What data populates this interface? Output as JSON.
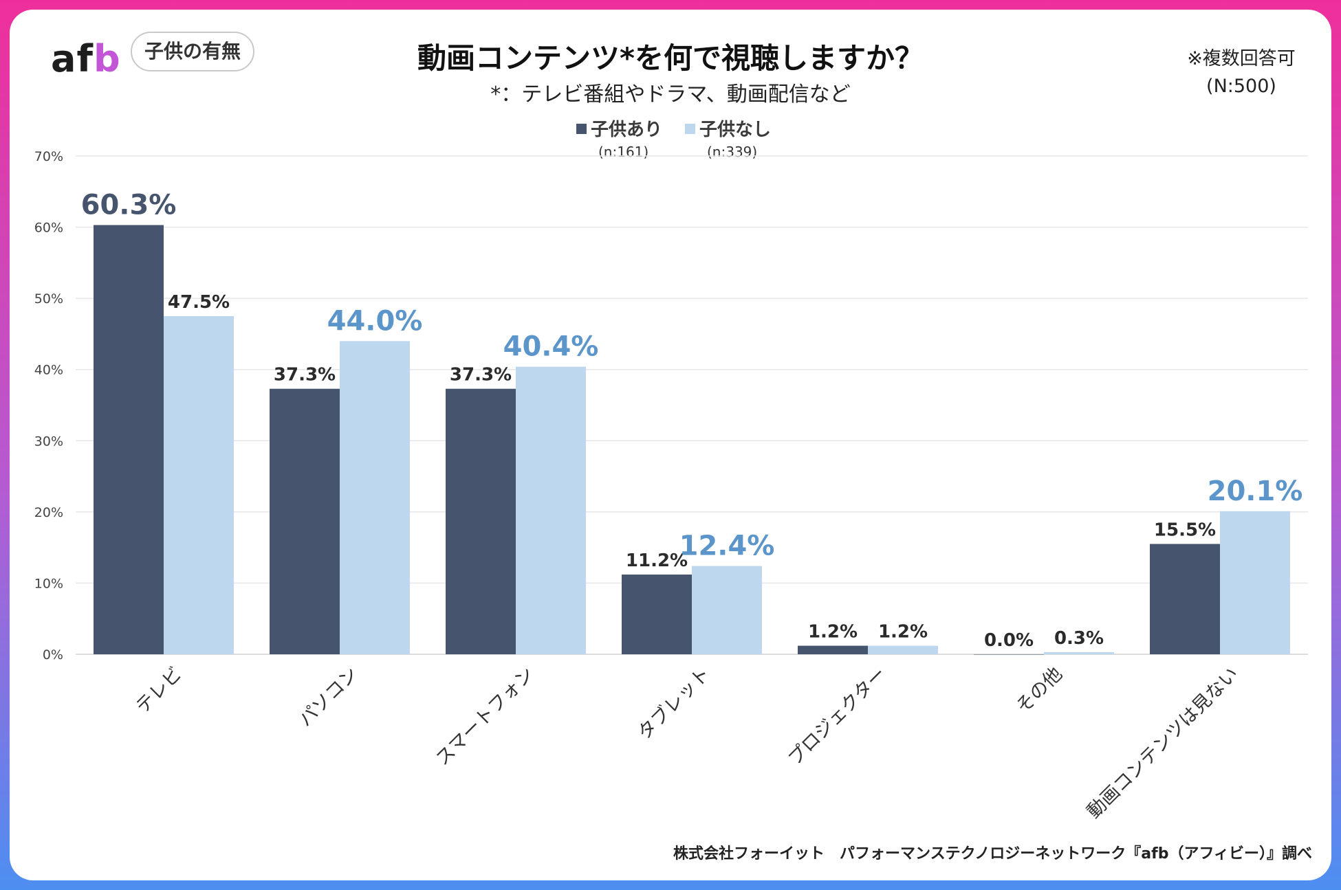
{
  "header": {
    "logo_a": "af",
    "logo_b": "b",
    "tag": "子供の有無",
    "title": "動画コンテンツ*を何で視聴しますか？",
    "subtitle": "*：テレビ番組やドラマ、動画配信など",
    "note_line1": "※複数回答可",
    "note_line2": "(N:500)"
  },
  "legend": [
    {
      "label": "子供あり",
      "n": "(n:161)",
      "color": "#46556d"
    },
    {
      "label": "子供なし",
      "n": "(n:339)",
      "color": "#bdd7ee"
    }
  ],
  "source": "株式会社フォーイット　パフォーマンステクノロジーネットワーク『afb（アフィビー）』調べ",
  "colors": {
    "series_dark": "#46556d",
    "series_light": "#bdd7ee",
    "highlight_blue": "#5b95c9",
    "highlight_dark": "#46556d",
    "label_default": "#2b2b2b"
  },
  "chart_data": {
    "type": "bar",
    "title": "動画コンテンツ*を何で視聴しますか？",
    "xlabel": "",
    "ylabel": "",
    "ylim": [
      0,
      70
    ],
    "yticks": [
      0,
      10,
      20,
      30,
      40,
      50,
      60,
      70
    ],
    "ytick_labels": [
      "0%",
      "10%",
      "20%",
      "30%",
      "40%",
      "50%",
      "60%",
      "70%"
    ],
    "grid": true,
    "categories": [
      "テレビ",
      "パソコン",
      "スマートフォン",
      "タブレット",
      "プロジェクター",
      "その他",
      "動画コンテンツは見ない"
    ],
    "series": [
      {
        "name": "子供あり",
        "values": [
          60.3,
          37.3,
          37.3,
          11.2,
          1.2,
          0.0,
          15.5
        ],
        "labels": [
          "60.3%",
          "37.3%",
          "37.3%",
          "11.2%",
          "1.2%",
          "0.0%",
          "15.5%"
        ],
        "highlight": [
          true,
          false,
          false,
          false,
          false,
          false,
          false
        ]
      },
      {
        "name": "子供なし",
        "values": [
          47.5,
          44.0,
          40.4,
          12.4,
          1.2,
          0.3,
          20.1
        ],
        "labels": [
          "47.5%",
          "44.0%",
          "40.4%",
          "12.4%",
          "1.2%",
          "0.3%",
          "20.1%"
        ],
        "highlight": [
          false,
          true,
          true,
          true,
          false,
          false,
          true
        ]
      }
    ]
  }
}
